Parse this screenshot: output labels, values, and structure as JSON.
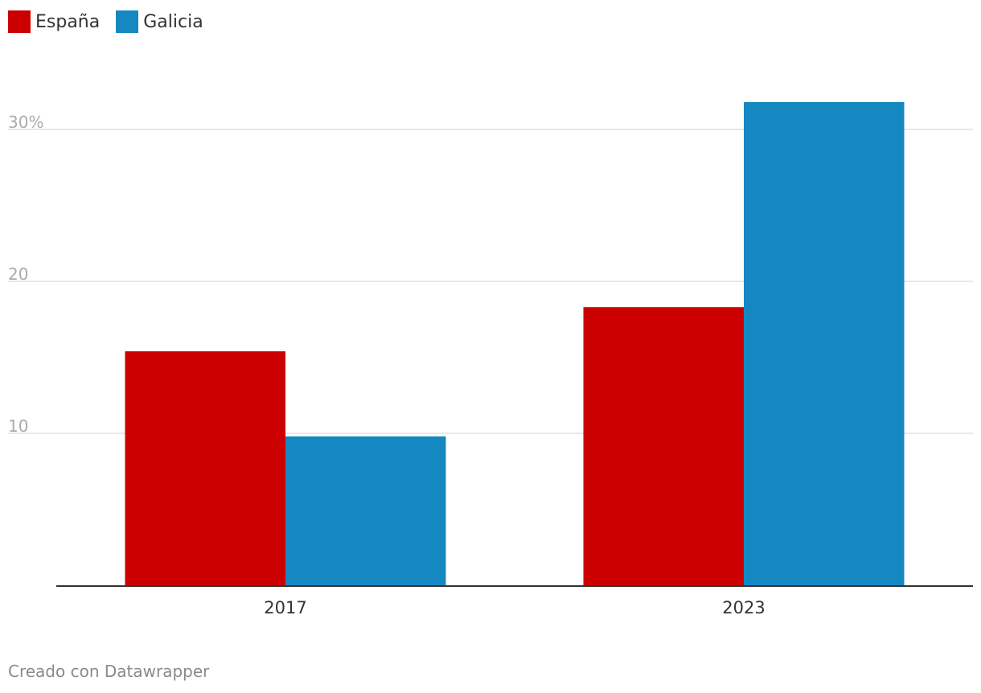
{
  "chart_data": {
    "type": "bar",
    "title": "",
    "xlabel": "",
    "ylabel": "",
    "categories": [
      "2017",
      "2023"
    ],
    "series": [
      {
        "name": "España",
        "color": "#cc0000",
        "values": [
          15.4,
          18.3
        ]
      },
      {
        "name": "Galicia",
        "color": "#1587c1",
        "values": [
          9.8,
          31.8
        ]
      }
    ],
    "ylim": [
      0,
      34.5
    ],
    "yticks": [
      {
        "value": 10,
        "label": "10"
      },
      {
        "value": 20,
        "label": "20"
      },
      {
        "value": 30,
        "label": "30%"
      }
    ],
    "grid": true,
    "legend": "top-left"
  },
  "footer": {
    "credit": "Creado con Datawrapper"
  }
}
